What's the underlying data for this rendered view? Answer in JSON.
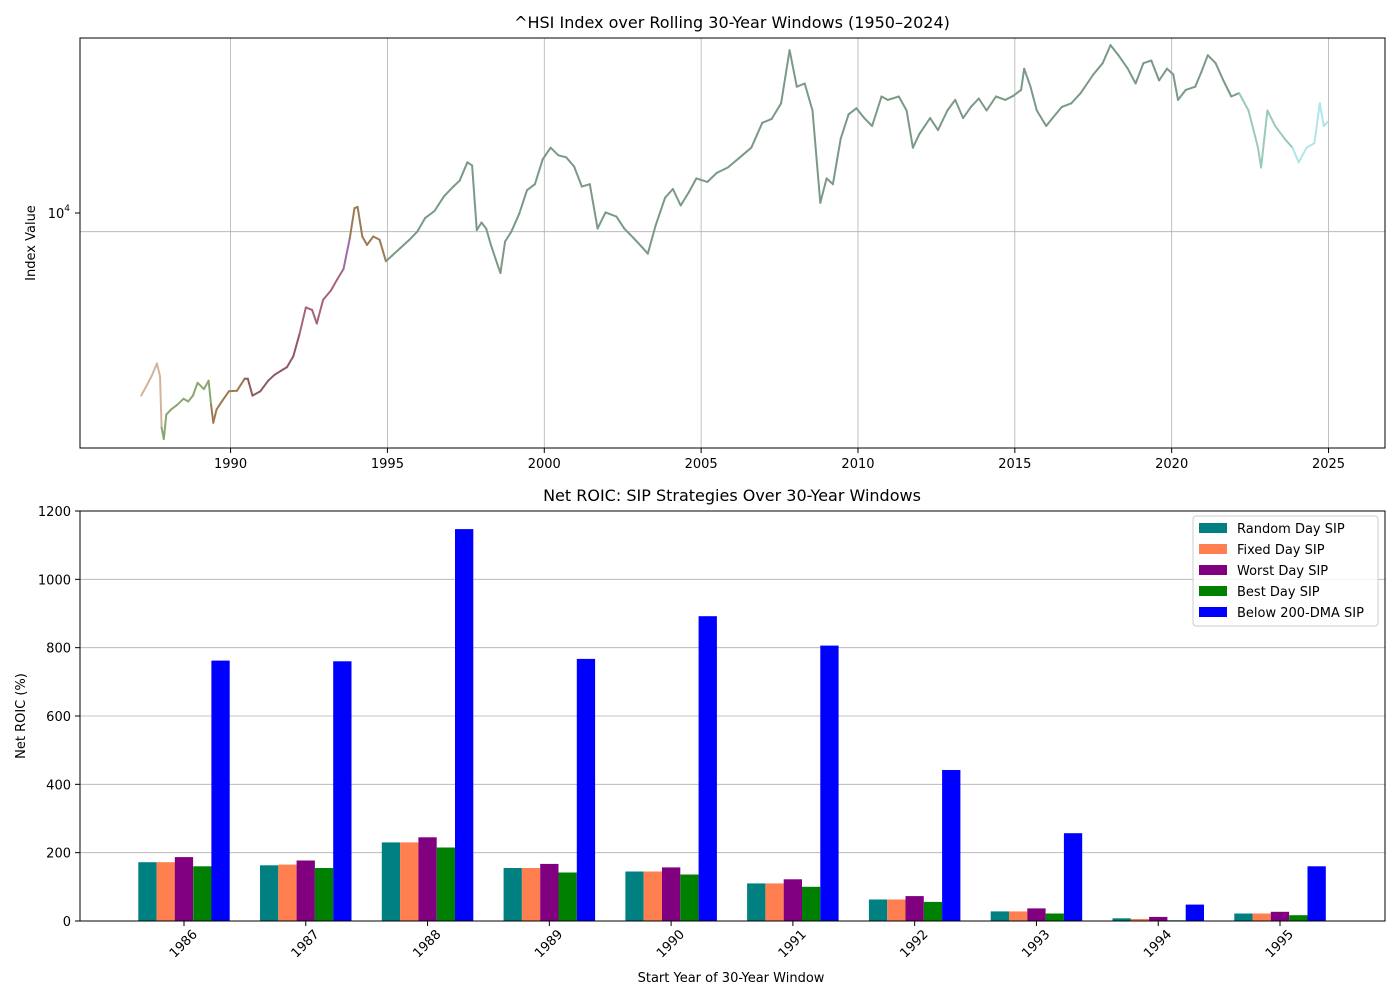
{
  "chart_data": [
    {
      "type": "line",
      "title": "^HSI Index over Rolling 30-Year Windows (1950–2024)",
      "xlabel": "",
      "ylabel": "Index Value",
      "x_ticks": [
        "1990",
        "1995",
        "2000",
        "2005",
        "2010",
        "2015",
        "2020",
        "2025"
      ],
      "y_tick_labels": [
        {
          "base": "10",
          "exp": "4",
          "value": 10000
        }
      ],
      "y_scale": "log",
      "xlim": [
        1985.2,
        2026.8
      ],
      "ylim": [
        2550,
        34000
      ],
      "grid": true,
      "note_colors": "line colored in segments by overlapping rolling windows",
      "points": [
        [
          1987.15,
          3550
        ],
        [
          1987.3,
          3750
        ],
        [
          1987.5,
          4050
        ],
        [
          1987.65,
          4350
        ],
        [
          1987.75,
          4020
        ],
        [
          1987.8,
          2900
        ],
        [
          1987.87,
          2700
        ],
        [
          1987.95,
          3150
        ],
        [
          1988.1,
          3250
        ],
        [
          1988.3,
          3350
        ],
        [
          1988.5,
          3480
        ],
        [
          1988.65,
          3420
        ],
        [
          1988.8,
          3550
        ],
        [
          1988.95,
          3850
        ],
        [
          1989.15,
          3700
        ],
        [
          1989.3,
          3900
        ],
        [
          1989.38,
          3350
        ],
        [
          1989.45,
          2990
        ],
        [
          1989.55,
          3250
        ],
        [
          1989.75,
          3450
        ],
        [
          1989.95,
          3650
        ],
        [
          1990.2,
          3660
        ],
        [
          1990.45,
          3950
        ],
        [
          1990.55,
          3950
        ],
        [
          1990.7,
          3550
        ],
        [
          1990.95,
          3650
        ],
        [
          1991.2,
          3900
        ],
        [
          1991.4,
          4050
        ],
        [
          1991.6,
          4150
        ],
        [
          1991.8,
          4250
        ],
        [
          1992.0,
          4550
        ],
        [
          1992.2,
          5250
        ],
        [
          1992.4,
          6200
        ],
        [
          1992.6,
          6100
        ],
        [
          1992.75,
          5600
        ],
        [
          1992.95,
          6500
        ],
        [
          1993.2,
          6900
        ],
        [
          1993.4,
          7400
        ],
        [
          1993.6,
          7900
        ],
        [
          1993.8,
          9600
        ],
        [
          1993.95,
          11600
        ],
        [
          1994.05,
          11700
        ],
        [
          1994.2,
          9700
        ],
        [
          1994.35,
          9200
        ],
        [
          1994.55,
          9700
        ],
        [
          1994.75,
          9500
        ],
        [
          1994.95,
          8300
        ],
        [
          1995.15,
          8600
        ],
        [
          1995.4,
          9000
        ],
        [
          1995.7,
          9500
        ],
        [
          1995.95,
          10000
        ],
        [
          1996.2,
          10900
        ],
        [
          1996.5,
          11400
        ],
        [
          1996.8,
          12500
        ],
        [
          1997.1,
          13300
        ],
        [
          1997.3,
          13800
        ],
        [
          1997.55,
          15500
        ],
        [
          1997.7,
          15200
        ],
        [
          1997.85,
          10100
        ],
        [
          1998.0,
          10600
        ],
        [
          1998.15,
          10200
        ],
        [
          1998.3,
          9200
        ],
        [
          1998.45,
          8400
        ],
        [
          1998.6,
          7700
        ],
        [
          1998.75,
          9400
        ],
        [
          1998.95,
          10000
        ],
        [
          1999.2,
          11200
        ],
        [
          1999.45,
          13000
        ],
        [
          1999.7,
          13500
        ],
        [
          1999.95,
          15800
        ],
        [
          2000.2,
          17000
        ],
        [
          2000.45,
          16200
        ],
        [
          2000.7,
          16000
        ],
        [
          2000.95,
          15100
        ],
        [
          2001.2,
          13300
        ],
        [
          2001.45,
          13500
        ],
        [
          2001.7,
          10200
        ],
        [
          2001.95,
          11300
        ],
        [
          2002.3,
          11000
        ],
        [
          2002.55,
          10200
        ],
        [
          2002.85,
          9600
        ],
        [
          2003.1,
          9100
        ],
        [
          2003.3,
          8700
        ],
        [
          2003.55,
          10400
        ],
        [
          2003.85,
          12400
        ],
        [
          2004.1,
          13100
        ],
        [
          2004.35,
          11800
        ],
        [
          2004.6,
          12800
        ],
        [
          2004.85,
          14000
        ],
        [
          2005.2,
          13700
        ],
        [
          2005.5,
          14500
        ],
        [
          2005.85,
          15000
        ],
        [
          2006.2,
          15900
        ],
        [
          2006.6,
          17000
        ],
        [
          2006.95,
          19900
        ],
        [
          2007.25,
          20400
        ],
        [
          2007.55,
          22500
        ],
        [
          2007.82,
          31500
        ],
        [
          2008.05,
          25000
        ],
        [
          2008.3,
          25500
        ],
        [
          2008.55,
          21500
        ],
        [
          2008.8,
          12000
        ],
        [
          2009.0,
          14000
        ],
        [
          2009.2,
          13500
        ],
        [
          2009.45,
          18000
        ],
        [
          2009.7,
          21000
        ],
        [
          2009.95,
          21800
        ],
        [
          2010.2,
          20500
        ],
        [
          2010.45,
          19500
        ],
        [
          2010.75,
          23500
        ],
        [
          2010.95,
          23000
        ],
        [
          2011.3,
          23500
        ],
        [
          2011.55,
          21500
        ],
        [
          2011.75,
          17000
        ],
        [
          2011.95,
          18500
        ],
        [
          2012.3,
          20500
        ],
        [
          2012.55,
          19000
        ],
        [
          2012.85,
          21500
        ],
        [
          2013.1,
          23000
        ],
        [
          2013.35,
          20500
        ],
        [
          2013.6,
          22000
        ],
        [
          2013.85,
          23200
        ],
        [
          2014.1,
          21500
        ],
        [
          2014.4,
          23500
        ],
        [
          2014.7,
          23000
        ],
        [
          2014.95,
          23600
        ],
        [
          2015.2,
          24500
        ],
        [
          2015.3,
          28000
        ],
        [
          2015.5,
          25000
        ],
        [
          2015.7,
          21500
        ],
        [
          2016.0,
          19500
        ],
        [
          2016.2,
          20500
        ],
        [
          2016.5,
          22000
        ],
        [
          2016.8,
          22500
        ],
        [
          2017.1,
          24000
        ],
        [
          2017.5,
          27000
        ],
        [
          2017.8,
          29000
        ],
        [
          2018.05,
          32500
        ],
        [
          2018.3,
          30500
        ],
        [
          2018.6,
          28000
        ],
        [
          2018.85,
          25500
        ],
        [
          2019.1,
          29000
        ],
        [
          2019.35,
          29500
        ],
        [
          2019.6,
          26000
        ],
        [
          2019.85,
          28000
        ],
        [
          2020.05,
          27000
        ],
        [
          2020.2,
          23000
        ],
        [
          2020.45,
          24500
        ],
        [
          2020.75,
          25000
        ],
        [
          2020.95,
          27500
        ],
        [
          2021.15,
          30500
        ],
        [
          2021.4,
          29000
        ],
        [
          2021.65,
          26000
        ],
        [
          2021.9,
          23500
        ],
        [
          2022.15,
          24000
        ],
        [
          2022.45,
          21500
        ],
        [
          2022.75,
          17000
        ],
        [
          2022.85,
          15000
        ],
        [
          2023.05,
          21500
        ],
        [
          2023.3,
          19500
        ],
        [
          2023.6,
          18000
        ],
        [
          2023.85,
          17000
        ],
        [
          2024.05,
          15500
        ],
        [
          2024.3,
          17000
        ],
        [
          2024.55,
          17500
        ],
        [
          2024.72,
          22500
        ],
        [
          2024.85,
          19500
        ],
        [
          2024.97,
          20000
        ]
      ]
    },
    {
      "type": "bar",
      "title": "Net ROIC: SIP Strategies Over 30-Year Windows",
      "xlabel": "Start Year of 30-Year Window",
      "ylabel": "Net ROIC (%)",
      "ylim": [
        0,
        1200
      ],
      "y_ticks": [
        "0",
        "200",
        "400",
        "600",
        "800",
        "1000",
        "1200"
      ],
      "grid": true,
      "legend_position": "top-right",
      "categories": [
        "1986",
        "1987",
        "1988",
        "1989",
        "1990",
        "1991",
        "1992",
        "1993",
        "1994",
        "1995"
      ],
      "series": [
        {
          "name": "Random Day SIP",
          "color": "#008080",
          "values": [
            172,
            163,
            230,
            155,
            145,
            110,
            63,
            28,
            8,
            22
          ]
        },
        {
          "name": "Fixed Day SIP",
          "color": "#ff7f50",
          "values": [
            172,
            165,
            230,
            155,
            145,
            110,
            63,
            28,
            6,
            22
          ]
        },
        {
          "name": "Worst Day SIP",
          "color": "#800080",
          "values": [
            187,
            177,
            245,
            167,
            157,
            122,
            73,
            37,
            12,
            27
          ]
        },
        {
          "name": "Best Day SIP",
          "color": "#008000",
          "values": [
            160,
            155,
            215,
            142,
            136,
            100,
            56,
            22,
            2,
            17
          ]
        },
        {
          "name": "Below 200-DMA SIP",
          "color": "#0000ff",
          "values": [
            762,
            760,
            1147,
            767,
            892,
            806,
            442,
            257,
            48,
            160
          ]
        }
      ]
    }
  ]
}
